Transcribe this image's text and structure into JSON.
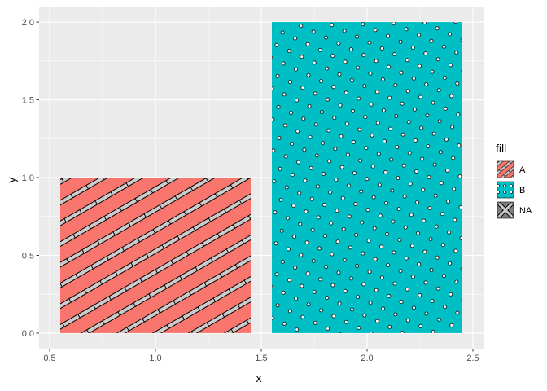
{
  "chart_data": {
    "type": "bar",
    "title": "",
    "xlabel": "x",
    "ylabel": "y",
    "xlim": [
      0.45,
      2.55
    ],
    "ylim": [
      -0.1,
      2.1
    ],
    "x_ticks": [
      0.5,
      1.0,
      1.5,
      2.0,
      2.5
    ],
    "x_tick_labels": [
      "0.5",
      "1.0",
      "1.5",
      "2.0",
      "2.5"
    ],
    "y_ticks": [
      0.0,
      0.5,
      1.0,
      1.5,
      2.0
    ],
    "y_tick_labels": [
      "0.0",
      "0.5",
      "1.0",
      "1.5",
      "2.0"
    ],
    "bars": [
      {
        "fill": "A",
        "x_center": 1.0,
        "width": 0.9,
        "value": 1.0,
        "color": "#F8766D",
        "pattern": "stripe"
      },
      {
        "fill": "B",
        "x_center": 2.0,
        "width": 0.9,
        "value": 2.0,
        "color": "#00BFC4",
        "pattern": "circle"
      }
    ],
    "grid": true,
    "panel_background": "#EBEBEB",
    "legend": {
      "title": "fill",
      "placement": "right",
      "entries": [
        {
          "label": "A",
          "color": "#F8766D",
          "pattern": "stripe"
        },
        {
          "label": "B",
          "color": "#00BFC4",
          "pattern": "circle"
        },
        {
          "label": "NA",
          "color": "#7F7F7F",
          "pattern": "crosshatch"
        }
      ]
    }
  }
}
